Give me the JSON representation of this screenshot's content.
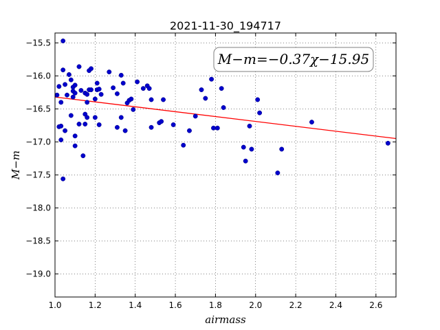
{
  "chart_data": {
    "type": "scatter",
    "title": "2021-11-30_194717",
    "xlabel": "airmass",
    "ylabel": "M−m",
    "annotation": "M−m=−0.37χ−15.95",
    "xlim": [
      1.0,
      2.7
    ],
    "ylim": [
      -19.35,
      -15.35
    ],
    "y_inverted": true,
    "grid": true,
    "xticks": [
      1.0,
      1.2,
      1.4,
      1.6,
      1.8,
      2.0,
      2.2,
      2.4,
      2.6
    ],
    "xtick_labels": [
      "1.0",
      "1.2",
      "1.4",
      "1.6",
      "1.8",
      "2.0",
      "2.2",
      "2.4",
      "2.6"
    ],
    "yticks": [
      -15.5,
      -16.0,
      -16.5,
      -17.0,
      -17.5,
      -18.0,
      -18.5,
      -19.0
    ],
    "ytick_labels": [
      "−15.5",
      "−16.0",
      "−16.5",
      "−17.0",
      "−17.5",
      "−18.0",
      "−18.5",
      "−19.0"
    ],
    "points_color": "#0000cc",
    "fit_color": "#ff0000",
    "fit": {
      "slope": -0.37,
      "intercept": -15.95
    },
    "points": [
      [
        1.01,
        -16.29
      ],
      [
        1.02,
        -16.77
      ],
      [
        1.02,
        -16.16
      ],
      [
        1.03,
        -16.97
      ],
      [
        1.03,
        -16.4
      ],
      [
        1.03,
        -16.76
      ],
      [
        1.04,
        -15.47
      ],
      [
        1.04,
        -15.91
      ],
      [
        1.04,
        -17.56
      ],
      [
        1.05,
        -16.13
      ],
      [
        1.05,
        -16.83
      ],
      [
        1.06,
        -16.29
      ],
      [
        1.07,
        -15.98
      ],
      [
        1.08,
        -16.6
      ],
      [
        1.08,
        -16.06
      ],
      [
        1.09,
        -16.23
      ],
      [
        1.09,
        -16.17
      ],
      [
        1.09,
        -16.32
      ],
      [
        1.1,
        -16.14
      ],
      [
        1.1,
        -16.26
      ],
      [
        1.1,
        -16.91
      ],
      [
        1.1,
        -17.06
      ],
      [
        1.12,
        -15.86
      ],
      [
        1.12,
        -16.73
      ],
      [
        1.13,
        -16.22
      ],
      [
        1.14,
        -17.21
      ],
      [
        1.15,
        -16.58
      ],
      [
        1.15,
        -16.26
      ],
      [
        1.15,
        -16.73
      ],
      [
        1.16,
        -16.4
      ],
      [
        1.16,
        -16.63
      ],
      [
        1.16,
        -16.28
      ],
      [
        1.17,
        -16.21
      ],
      [
        1.17,
        -15.92
      ],
      [
        1.18,
        -16.21
      ],
      [
        1.18,
        -15.89
      ],
      [
        1.2,
        -16.35
      ],
      [
        1.2,
        -16.63
      ],
      [
        1.21,
        -16.11
      ],
      [
        1.21,
        -16.21
      ],
      [
        1.22,
        -16.74
      ],
      [
        1.22,
        -16.2
      ],
      [
        1.23,
        -16.28
      ],
      [
        1.27,
        -15.94
      ],
      [
        1.29,
        -16.18
      ],
      [
        1.31,
        -16.78
      ],
      [
        1.31,
        -16.27
      ],
      [
        1.33,
        -15.99
      ],
      [
        1.33,
        -16.63
      ],
      [
        1.34,
        -16.11
      ],
      [
        1.35,
        -16.83
      ],
      [
        1.36,
        -16.41
      ],
      [
        1.37,
        -16.37
      ],
      [
        1.38,
        -16.35
      ],
      [
        1.39,
        -16.51
      ],
      [
        1.41,
        -16.09
      ],
      [
        1.44,
        -16.19
      ],
      [
        1.46,
        -16.15
      ],
      [
        1.47,
        -16.19
      ],
      [
        1.48,
        -16.36
      ],
      [
        1.48,
        -16.78
      ],
      [
        1.52,
        -16.71
      ],
      [
        1.53,
        -16.69
      ],
      [
        1.54,
        -16.36
      ],
      [
        1.59,
        -16.74
      ],
      [
        1.64,
        -17.05
      ],
      [
        1.67,
        -16.83
      ],
      [
        1.7,
        -16.61
      ],
      [
        1.73,
        -16.21
      ],
      [
        1.75,
        -16.34
      ],
      [
        1.78,
        -16.05
      ],
      [
        1.79,
        -16.79
      ],
      [
        1.81,
        -16.79
      ],
      [
        1.83,
        -16.19
      ],
      [
        1.84,
        -16.48
      ],
      [
        1.94,
        -17.08
      ],
      [
        1.95,
        -17.29
      ],
      [
        1.97,
        -16.76
      ],
      [
        1.98,
        -17.11
      ],
      [
        2.01,
        -16.36
      ],
      [
        2.02,
        -16.56
      ],
      [
        2.11,
        -17.47
      ],
      [
        2.13,
        -17.11
      ],
      [
        2.28,
        -16.7
      ],
      [
        2.66,
        -17.02
      ]
    ]
  }
}
